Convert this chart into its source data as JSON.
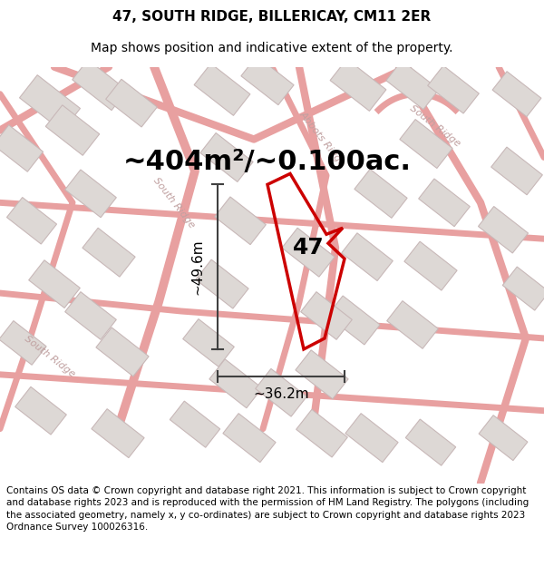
{
  "title": "47, SOUTH RIDGE, BILLERICAY, CM11 2ER",
  "subtitle": "Map shows position and indicative extent of the property.",
  "area_text": "~404m²/~0.100ac.",
  "label_47": "47",
  "dim_vertical": "~49.6m",
  "dim_horizontal": "~36.2m",
  "footer": "Contains OS data © Crown copyright and database right 2021. This information is subject to Crown copyright and database rights 2023 and is reproduced with the permission of HM Land Registry. The polygons (including the associated geometry, namely x, y co-ordinates) are subject to Crown copyright and database rights 2023 Ordnance Survey 100026316.",
  "map_bg": "#f5f0ee",
  "road_color": "#e8a0a0",
  "building_fc": "#ddd8d5",
  "building_ec": "#c8b8b8",
  "property_color": "#cc0000",
  "dim_color": "#404040",
  "road_label_color": "#c0a0a0",
  "title_fontsize": 11,
  "subtitle_fontsize": 10,
  "area_fontsize": 22,
  "label_fontsize": 18,
  "dim_fontsize": 11,
  "footer_fontsize": 7.5,
  "road_label_fontsize": 8
}
